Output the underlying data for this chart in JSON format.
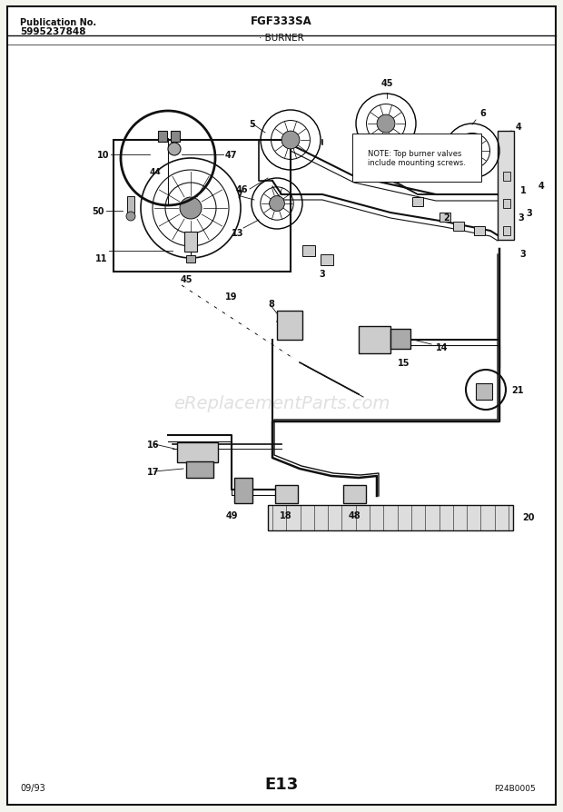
{
  "title_center": "FGF333SA",
  "title_sub": "BURNER",
  "pub_no_label": "Publication No.",
  "pub_no": "5995237848",
  "date": "09/93",
  "page_code": "E13",
  "watermark": "eReplacementParts.com",
  "ref_code": "P24B0005",
  "note_text": "NOTE: Top burner valves\ninclude mounting screws.",
  "bg_color": "#f5f5f0",
  "border_color": "#111111",
  "diagram_color": "#111111",
  "fig_width": 6.2,
  "fig_height": 8.95,
  "dpi": 100
}
